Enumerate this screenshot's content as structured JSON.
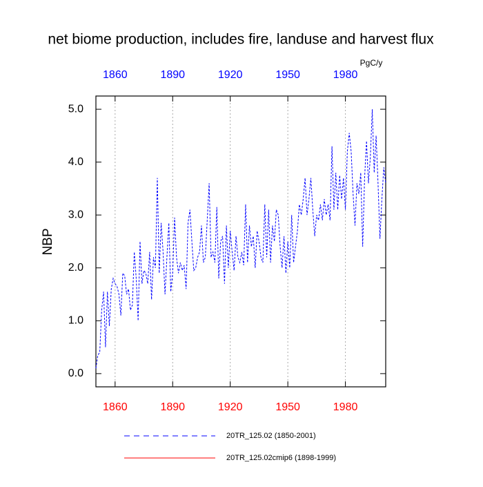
{
  "chart_data": {
    "type": "line",
    "title": "net biome production, includes fire, landuse and harvest flux",
    "units": "PgC/y",
    "y_label": "NBP",
    "x": [
      1850,
      1851,
      1852,
      1853,
      1854,
      1855,
      1856,
      1857,
      1858,
      1859,
      1860,
      1861,
      1862,
      1863,
      1864,
      1865,
      1866,
      1867,
      1868,
      1869,
      1870,
      1871,
      1872,
      1873,
      1874,
      1875,
      1876,
      1877,
      1878,
      1879,
      1880,
      1881,
      1882,
      1883,
      1884,
      1885,
      1886,
      1887,
      1888,
      1889,
      1890,
      1891,
      1892,
      1893,
      1894,
      1895,
      1896,
      1897,
      1898,
      1899,
      1900,
      1901,
      1902,
      1903,
      1904,
      1905,
      1906,
      1907,
      1908,
      1909,
      1910,
      1911,
      1912,
      1913,
      1914,
      1915,
      1916,
      1917,
      1918,
      1919,
      1920,
      1921,
      1922,
      1923,
      1924,
      1925,
      1926,
      1927,
      1928,
      1929,
      1930,
      1931,
      1932,
      1933,
      1934,
      1935,
      1936,
      1937,
      1938,
      1939,
      1940,
      1941,
      1942,
      1943,
      1944,
      1945,
      1946,
      1947,
      1948,
      1949,
      1950,
      1951,
      1952,
      1953,
      1954,
      1955,
      1956,
      1957,
      1958,
      1959,
      1960,
      1961,
      1962,
      1963,
      1964,
      1965,
      1966,
      1967,
      1968,
      1969,
      1970,
      1971,
      1972,
      1973,
      1974,
      1975,
      1976,
      1977,
      1978,
      1979,
      1980,
      1981,
      1982,
      1983,
      1984,
      1985,
      1986,
      1987,
      1988,
      1989,
      1990,
      1991,
      1992,
      1993,
      1994,
      1995,
      1996,
      1997,
      1998,
      1999,
      2000,
      2001
    ],
    "series": [
      {
        "name": "20TR_125.02 (1850-2001)",
        "color": "#0000ff",
        "dashed": true,
        "values": [
          0.1,
          0.35,
          0.4,
          1.2,
          1.55,
          0.5,
          1.55,
          0.9,
          1.6,
          1.8,
          1.7,
          1.65,
          1.5,
          1.1,
          1.9,
          1.85,
          1.5,
          1.6,
          1.2,
          1.3,
          2.3,
          1.8,
          1.0,
          2.5,
          1.7,
          1.95,
          1.9,
          1.7,
          2.3,
          1.4,
          2.2,
          2.0,
          3.7,
          1.9,
          2.85,
          2.3,
          1.5,
          2.2,
          2.85,
          1.55,
          1.9,
          2.95,
          2.2,
          1.9,
          2.1,
          1.95,
          2.05,
          1.6,
          2.85,
          3.1,
          2.5,
          1.95,
          2.0,
          2.2,
          2.3,
          2.8,
          2.1,
          2.2,
          2.9,
          3.6,
          2.2,
          2.3,
          2.1,
          3.15,
          1.8,
          2.5,
          2.6,
          1.7,
          2.8,
          2.0,
          2.7,
          2.3,
          1.95,
          2.6,
          2.2,
          2.1,
          2.3,
          2.05,
          3.2,
          2.1,
          2.8,
          2.4,
          2.6,
          2.0,
          2.7,
          2.5,
          2.2,
          2.1,
          3.2,
          2.2,
          3.1,
          2.1,
          2.8,
          2.5,
          3.1,
          3.0,
          2.4,
          2.0,
          2.6,
          1.9,
          2.5,
          2.0,
          3.0,
          2.1,
          2.4,
          2.7,
          3.2,
          3.0,
          3.3,
          3.7,
          3.0,
          3.3,
          3.7,
          3.1,
          2.6,
          3.0,
          2.9,
          3.2,
          2.9,
          3.3,
          3.0,
          3.2,
          2.9,
          4.3,
          3.1,
          3.8,
          3.1,
          3.75,
          3.3,
          3.7,
          3.1,
          4.2,
          4.55,
          4.2,
          3.4,
          2.8,
          3.6,
          3.4,
          3.8,
          2.4,
          3.7,
          4.4,
          3.6,
          4.1,
          5.0,
          3.8,
          4.5,
          3.6,
          2.55,
          3.3,
          3.9,
          3.6
        ]
      },
      {
        "name": "20TR_125.02cmip6 (1898-1999)",
        "color": "#ff0000",
        "dashed": false,
        "values": [
          null,
          null,
          null,
          null,
          null,
          null,
          null,
          null,
          null,
          null,
          null,
          null,
          null,
          null,
          null,
          null,
          null,
          null,
          null,
          null,
          null,
          null,
          null,
          null,
          null,
          null,
          null,
          null,
          null,
          null,
          null,
          null,
          null,
          null,
          null,
          null,
          null,
          null,
          null,
          null,
          null,
          null,
          null,
          null,
          null,
          null,
          null,
          null,
          null,
          null,
          null,
          null,
          null,
          null,
          null,
          null,
          null,
          null,
          null,
          null,
          null,
          null,
          null,
          null,
          null,
          null,
          null,
          null,
          null,
          null,
          null,
          null,
          null,
          null,
          null,
          null,
          null,
          null,
          null,
          null,
          null,
          null,
          null,
          null,
          null,
          null,
          null,
          null,
          null,
          null,
          null,
          null,
          null,
          null,
          null,
          null,
          null,
          null,
          null,
          null,
          null,
          null,
          null,
          null,
          null,
          null,
          null,
          null,
          null,
          null,
          null,
          null,
          null,
          null,
          null,
          null,
          null,
          null,
          null,
          null,
          null,
          null,
          null,
          null,
          null,
          null,
          null,
          null,
          null,
          null,
          null,
          null,
          null,
          null,
          null,
          null,
          null,
          null,
          null,
          null,
          null,
          null,
          null,
          null,
          null,
          null,
          null,
          null,
          null,
          null,
          null,
          null
        ]
      }
    ],
    "xlim": [
      1850,
      2001
    ],
    "xticks": [
      1860,
      1890,
      1920,
      1950,
      1980
    ],
    "ylim": [
      -0.25,
      5.25
    ],
    "yticks": [
      {
        "value": 0,
        "label": "0.0"
      },
      {
        "value": 1,
        "label": "1.0"
      },
      {
        "value": 2,
        "label": "2.0"
      },
      {
        "value": 3,
        "label": "3.0"
      },
      {
        "value": 4,
        "label": "4.0"
      },
      {
        "value": 5,
        "label": "5.0"
      }
    ],
    "x_grid": true
  }
}
